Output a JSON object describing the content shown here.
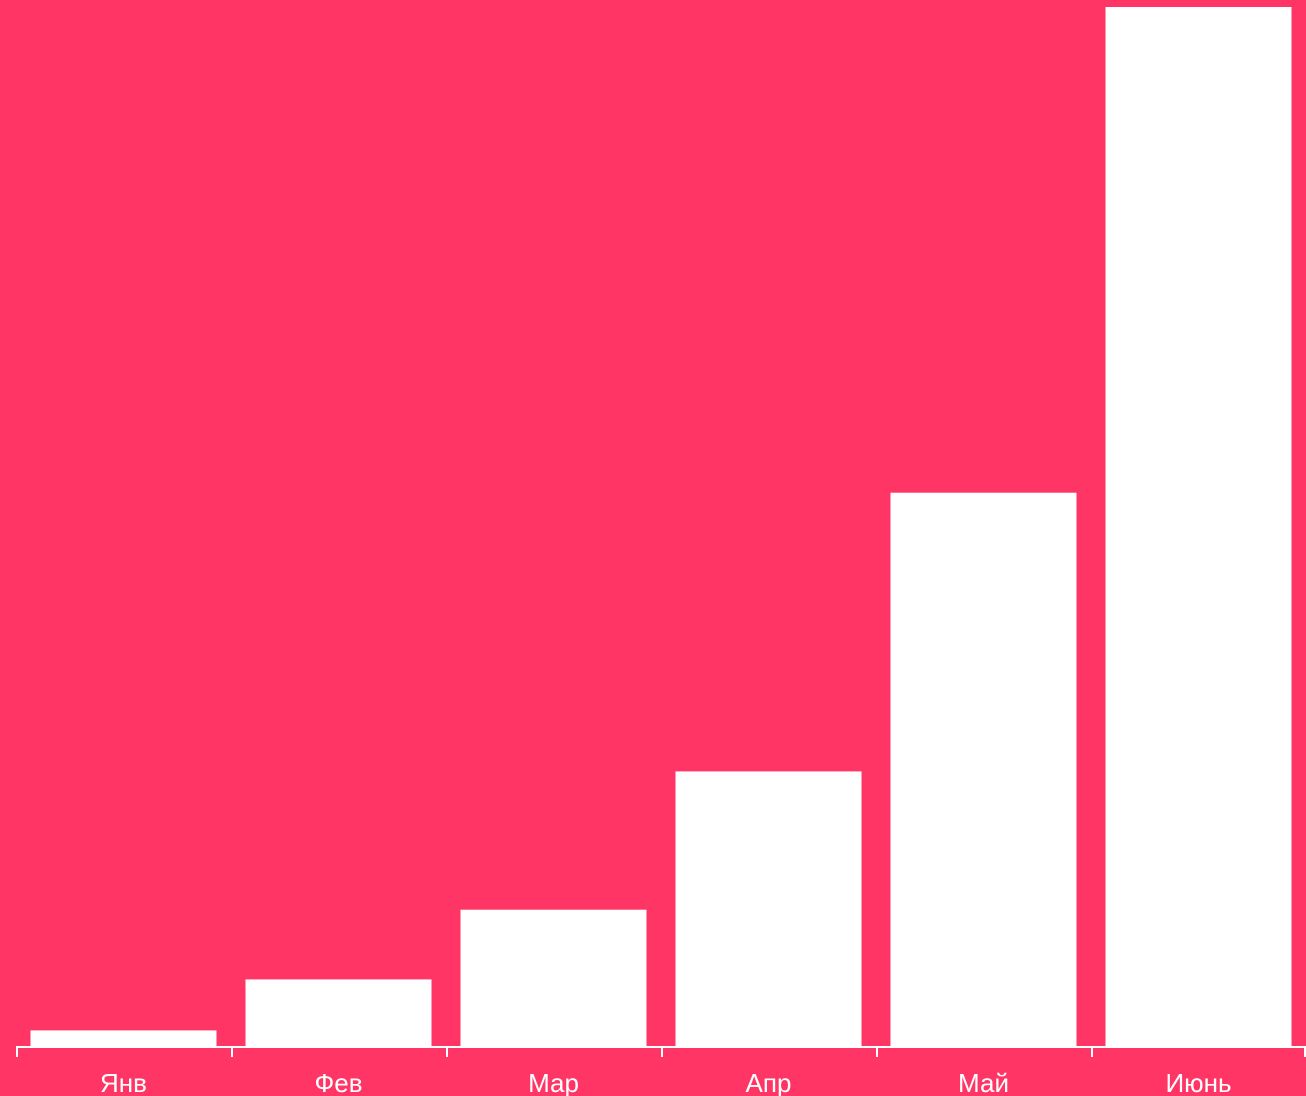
{
  "colors": {
    "background": "#ff3566",
    "bar": "#ffffff",
    "axis": "#ffffff",
    "text": "#ffffff"
  },
  "chart_data": {
    "type": "bar",
    "categories": [
      "Янв",
      "Фев",
      "Мар",
      "Апр",
      "Май",
      "Июнь"
    ],
    "values": [
      1.6,
      6.5,
      13.2,
      26.5,
      53.3,
      100
    ],
    "ylim": [
      0,
      100
    ],
    "grid": false,
    "legend": "none",
    "y_axis_visible": false
  }
}
